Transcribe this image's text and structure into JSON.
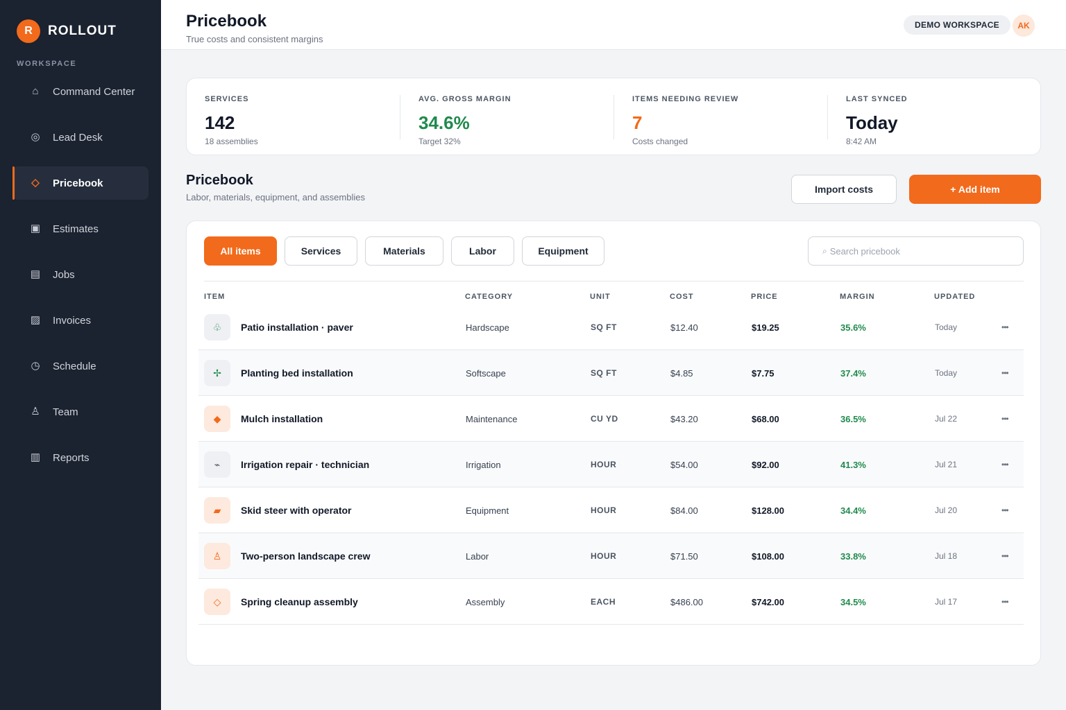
{
  "brand": {
    "initial": "R",
    "name": "ROLLOUT"
  },
  "sidebar": {
    "section_label": "WORKSPACE",
    "items": [
      {
        "label": "Command Center",
        "icon": "⌂"
      },
      {
        "label": "Lead Desk",
        "icon": "◎"
      },
      {
        "label": "Pricebook",
        "icon": "◇"
      },
      {
        "label": "Estimates",
        "icon": "▣"
      },
      {
        "label": "Jobs",
        "icon": "▤"
      },
      {
        "label": "Invoices",
        "icon": "▨"
      },
      {
        "label": "Schedule",
        "icon": "◷"
      },
      {
        "label": "Team",
        "icon": "♙"
      },
      {
        "label": "Reports",
        "icon": "▥"
      }
    ]
  },
  "header": {
    "title": "Pricebook",
    "subtitle": "True costs and consistent margins",
    "workspace_badge": "DEMO WORKSPACE",
    "avatar_initials": "AK"
  },
  "stats": [
    {
      "label": "SERVICES",
      "value": "142",
      "note": "18 assemblies"
    },
    {
      "label": "AVG. GROSS MARGIN",
      "value": "34.6%",
      "note": "Target 32%"
    },
    {
      "label": "ITEMS NEEDING REVIEW",
      "value": "7",
      "note": "Costs changed"
    },
    {
      "label": "LAST SYNCED",
      "value": "Today",
      "note": "8:42 AM"
    }
  ],
  "section": {
    "title": "Pricebook",
    "subtitle": "Labor, materials, equipment, and assemblies",
    "import_label": "Import costs",
    "add_label": "+ Add item"
  },
  "filters": [
    "All items",
    "Services",
    "Materials",
    "Labor",
    "Equipment"
  ],
  "search": {
    "icon": "⌕",
    "placeholder": "Search pricebook"
  },
  "table": {
    "headers": [
      "ITEM",
      "CATEGORY",
      "UNIT",
      "COST",
      "PRICE",
      "MARGIN",
      "UPDATED"
    ],
    "more_icon": "•••",
    "rows": [
      {
        "icon": "♧",
        "item": "Patio installation · paver",
        "category": "Hardscape",
        "unit": "SQ FT",
        "cost": "$12.40",
        "price": "$19.25",
        "margin": "35.6%",
        "updated": "Today"
      },
      {
        "icon": "✢",
        "item": "Planting bed installation",
        "category": "Softscape",
        "unit": "SQ FT",
        "cost": "$4.85",
        "price": "$7.75",
        "margin": "37.4%",
        "updated": "Today"
      },
      {
        "icon": "◆",
        "item": "Mulch installation",
        "category": "Maintenance",
        "unit": "CU YD",
        "cost": "$43.20",
        "price": "$68.00",
        "margin": "36.5%",
        "updated": "Jul 22"
      },
      {
        "icon": "⌁",
        "item": "Irrigation repair · technician",
        "category": "Irrigation",
        "unit": "HOUR",
        "cost": "$54.00",
        "price": "$92.00",
        "margin": "41.3%",
        "updated": "Jul 21"
      },
      {
        "icon": "▰",
        "item": "Skid steer with operator",
        "category": "Equipment",
        "unit": "HOUR",
        "cost": "$84.00",
        "price": "$128.00",
        "margin": "34.4%",
        "updated": "Jul 20"
      },
      {
        "icon": "♙",
        "item": "Two-person landscape crew",
        "category": "Labor",
        "unit": "HOUR",
        "cost": "$71.50",
        "price": "$108.00",
        "margin": "33.8%",
        "updated": "Jul 18"
      },
      {
        "icon": "◇",
        "item": "Spring cleanup assembly",
        "category": "Assembly",
        "unit": "EACH",
        "cost": "$486.00",
        "price": "$742.00",
        "margin": "34.5%",
        "updated": "Jul 17"
      }
    ]
  }
}
